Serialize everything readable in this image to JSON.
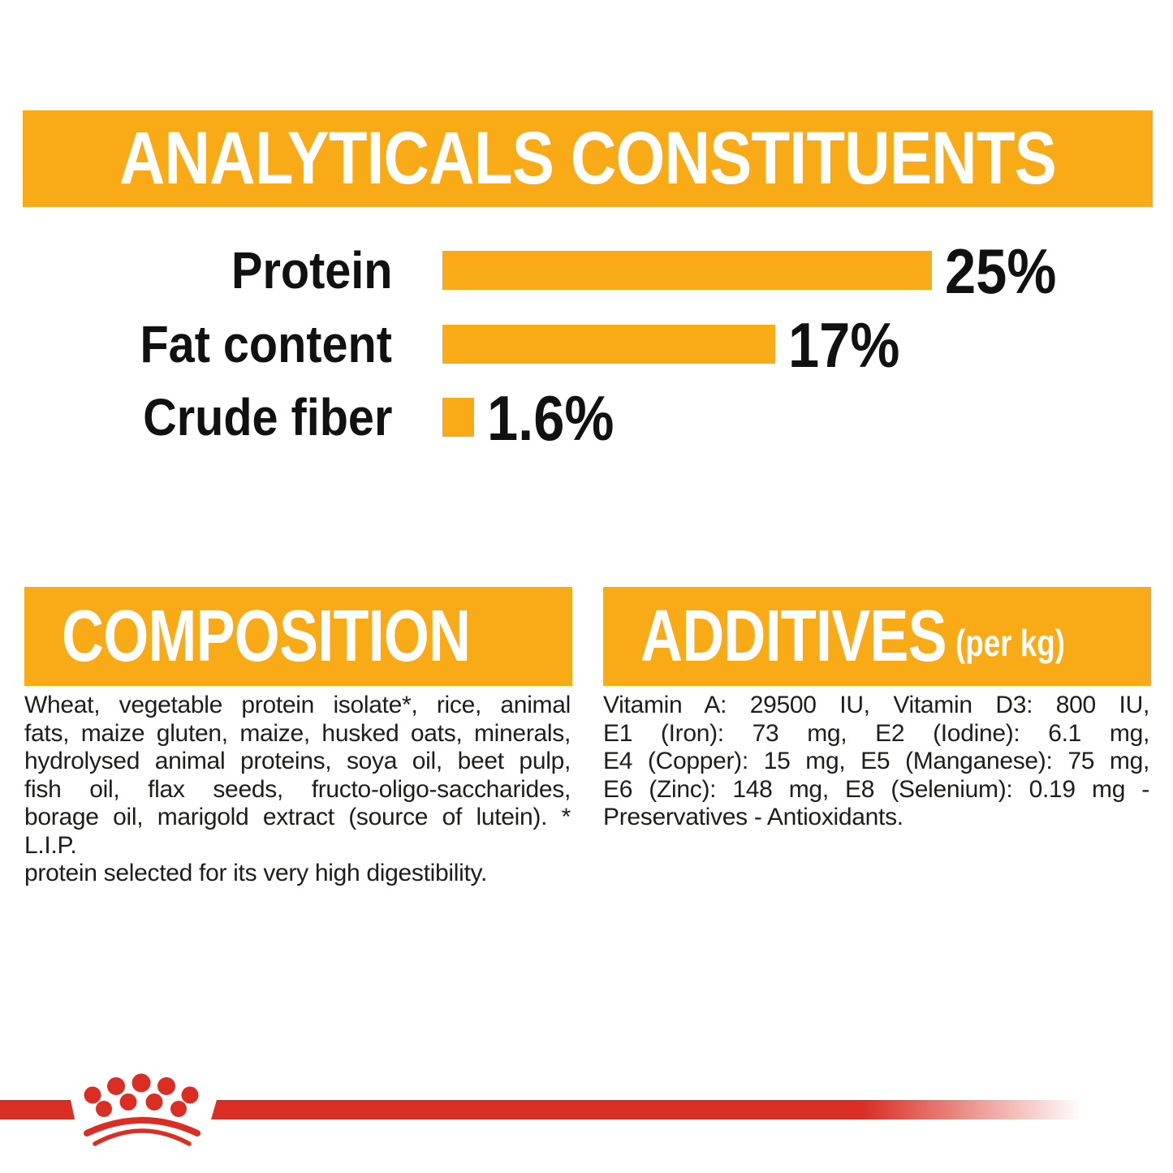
{
  "colors": {
    "orange": "#F8AB17",
    "red": "#DA2E24",
    "text_black": "#1d1d1b",
    "banner_text": "#ffffff"
  },
  "header": {
    "title": "ANALYTICALS CONSTITUENTS"
  },
  "chart_data": {
    "type": "bar",
    "orientation": "horizontal",
    "title": "ANALYTICALS CONSTITUENTS",
    "categories": [
      "Protein",
      "Fat content",
      "Crude fiber"
    ],
    "values": [
      25,
      17,
      1.6
    ],
    "value_labels": [
      "25%",
      "17%",
      "1.6%"
    ],
    "unit": "%",
    "xlim": [
      0,
      25
    ],
    "bar_color": "#F8AB17",
    "label_color": "#111111",
    "grid": false,
    "legend": "none"
  },
  "composition": {
    "header": "COMPOSITION",
    "text": "Wheat, vegetable protein isolate*, rice, animal fats, maize gluten, maize, husked oats, minerals, hydrolysed animal proteins, soya oil, beet pulp, fish oil, flax seeds, fructo-oligo-saccharides, borage oil, marigold extract (source of lutein). * L.I.P. protein selected for its very high digestibility.",
    "lines": [
      "Wheat, vegetable protein isolate*, rice, animal",
      "fats, maize gluten, maize, husked oats, minerals,",
      "hydrolysed animal proteins, soya oil, beet pulp,",
      "fish oil, flax seeds, fructo-oligo-saccharides,",
      "borage oil, marigold extract (source of lutein). * L.I.P.",
      "protein selected for its very high digestibility."
    ]
  },
  "additives": {
    "header": "ADDITIVES",
    "header_suffix": "(per kg)",
    "text": "Vitamin A: 29500 IU, Vitamin D3: 800 IU, E1 (Iron): 73 mg, E2 (Iodine): 6.1 mg, E4 (Copper): 15 mg, E5 (Manganese): 75 mg, E6 (Zinc): 148 mg, E8 (Selenium): 0.19 mg - Preservatives - Antioxidants.",
    "lines": [
      "Vitamin A: 29500 IU, Vitamin D3: 800 IU,",
      "E1 (Iron): 73 mg, E2 (Iodine): 6.1 mg,",
      "E4 (Copper): 15 mg, E5 (Manganese): 75 mg,",
      "E6 (Zinc): 148 mg, E8 (Selenium): 0.19 mg -",
      "Preservatives - Antioxidants."
    ]
  },
  "footer": {
    "logo": "royal-canin-crown"
  }
}
